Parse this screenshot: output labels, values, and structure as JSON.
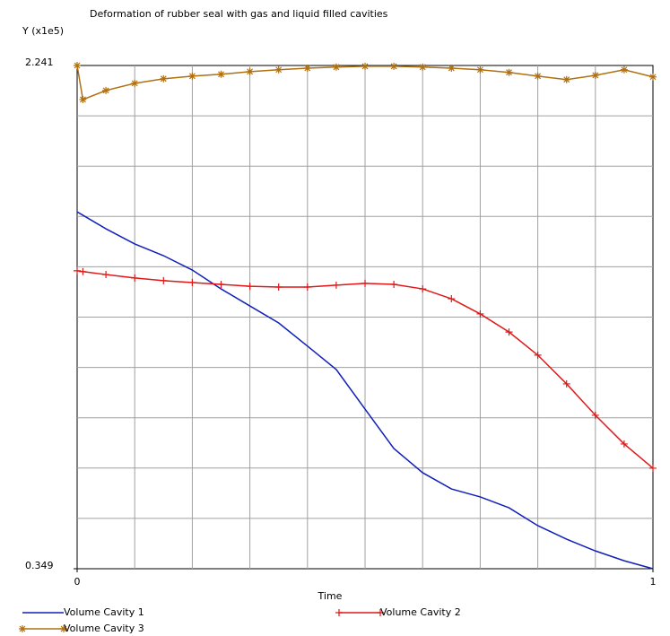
{
  "chart_data": {
    "type": "line",
    "title": "Deformation of rubber seal with gas and liquid filled cavities",
    "ylabel": "Y (x1e5)",
    "xlabel": "Time",
    "x": [
      0,
      0.01,
      0.05,
      0.1,
      0.15,
      0.2,
      0.25,
      0.3,
      0.35,
      0.4,
      0.45,
      0.5,
      0.55,
      0.6,
      0.65,
      0.7,
      0.75,
      0.8,
      0.85,
      0.9,
      0.95,
      1
    ],
    "xlim": [
      0,
      1
    ],
    "xticks": [
      0,
      1
    ],
    "ylim": [
      0.349,
      2.241
    ],
    "yticks": [
      0.349,
      2.241
    ],
    "grid": true,
    "series": [
      {
        "name": "Volume Cavity 1",
        "color": "#1020b8",
        "values": [
          1.691,
          1.678,
          1.627,
          1.57,
          1.526,
          1.472,
          1.401,
          1.337,
          1.273,
          1.186,
          1.098,
          0.949,
          0.801,
          0.71,
          0.649,
          0.619,
          0.578,
          0.511,
          0.46,
          0.416,
          0.379,
          0.349
        ]
      },
      {
        "name": "Volume Cavity 2",
        "color": "#e01818",
        "marker": "plus",
        "values": [
          1.469,
          1.466,
          1.455,
          1.442,
          1.432,
          1.425,
          1.418,
          1.411,
          1.408,
          1.408,
          1.415,
          1.422,
          1.418,
          1.401,
          1.364,
          1.307,
          1.239,
          1.152,
          1.044,
          0.926,
          0.818,
          0.727
        ]
      },
      {
        "name": "Volume Cavity 3",
        "color": "#b07010",
        "marker": "star",
        "values": [
          2.241,
          2.113,
          2.147,
          2.174,
          2.191,
          2.201,
          2.208,
          2.218,
          2.225,
          2.231,
          2.235,
          2.238,
          2.238,
          2.235,
          2.231,
          2.225,
          2.215,
          2.201,
          2.188,
          2.204,
          2.225,
          2.198
        ]
      }
    ]
  }
}
